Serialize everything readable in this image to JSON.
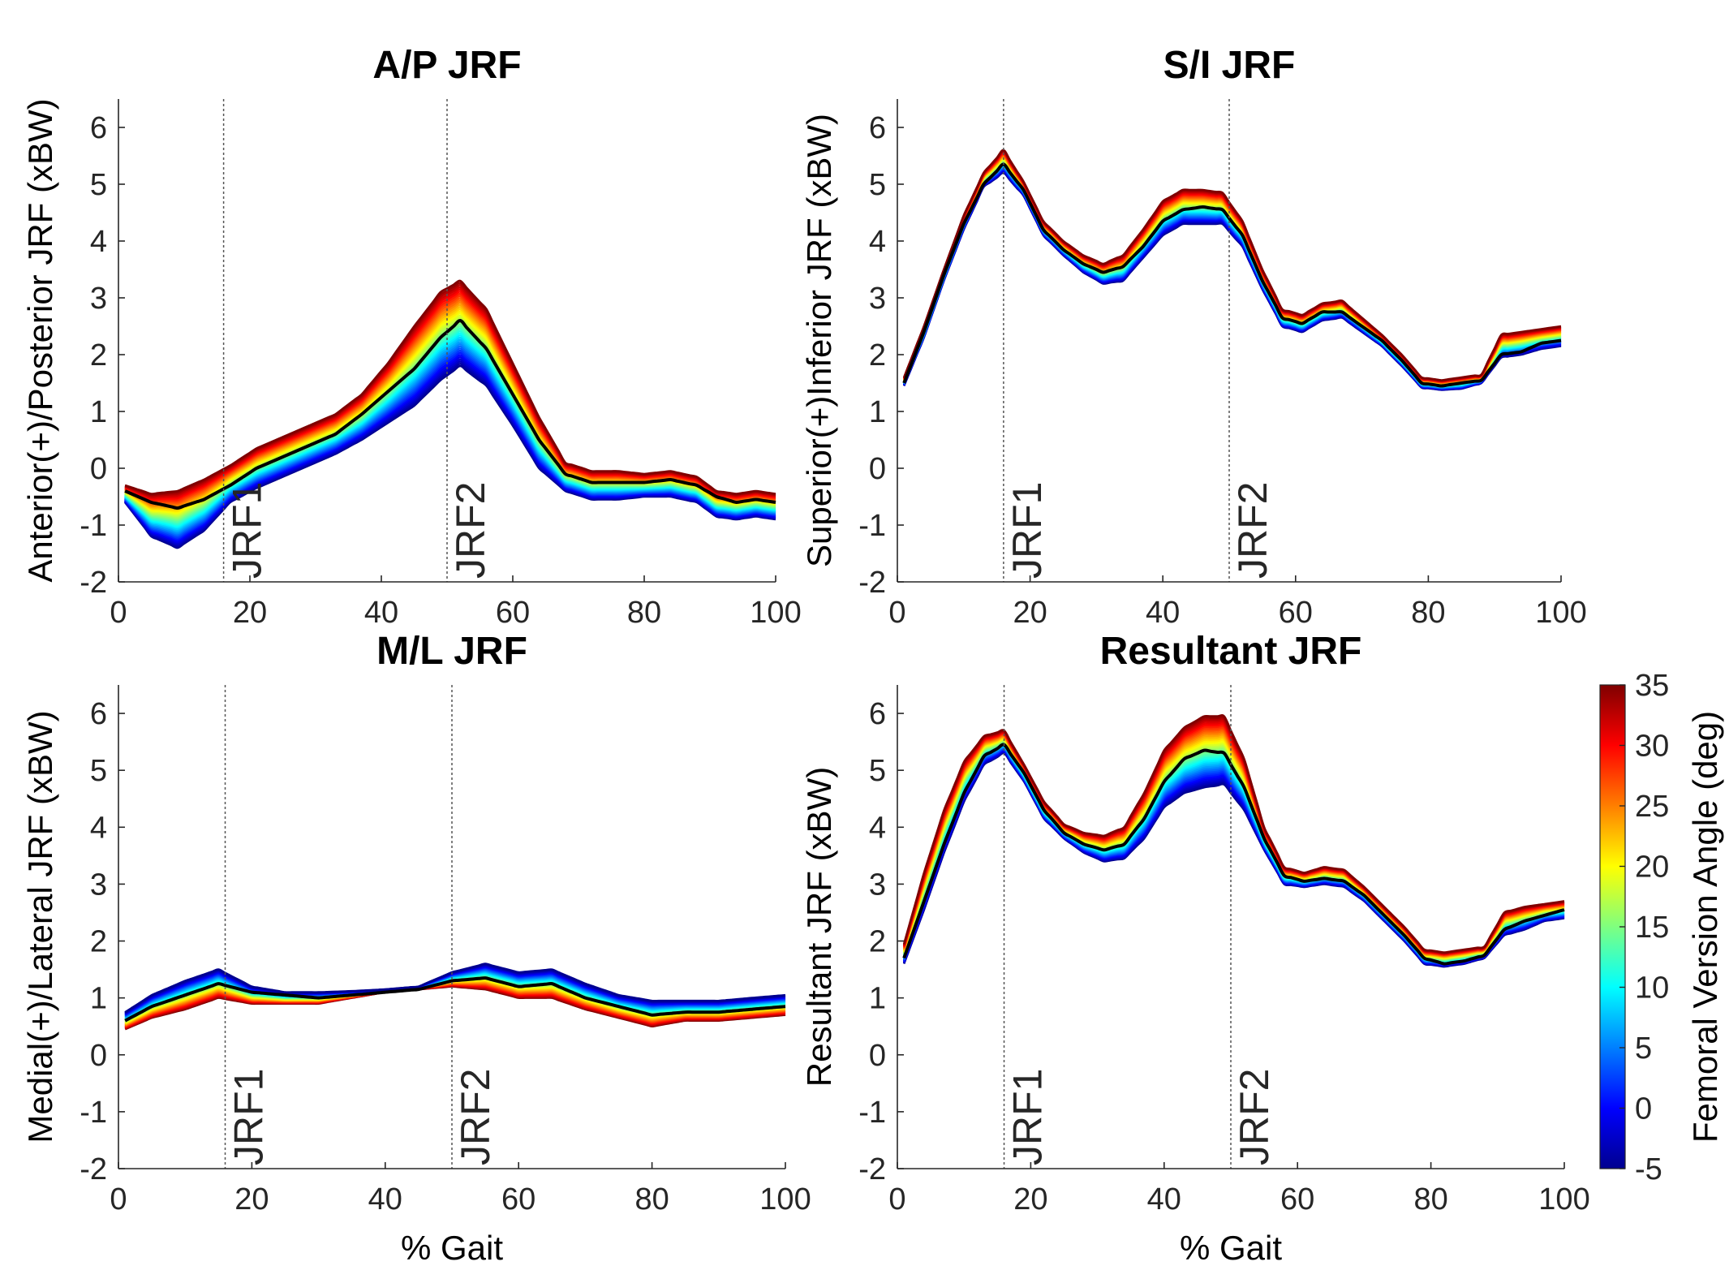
{
  "colormap_stops": [
    "#00008F",
    "#0000FF",
    "#007FFF",
    "#00FFFF",
    "#7FFF7F",
    "#FFFF00",
    "#FF7F00",
    "#FF0000",
    "#7F0000"
  ],
  "mean_color": "#000000",
  "chart_data": [
    {
      "type": "line",
      "title": "A/P JRF",
      "ylabel": "Anterior(+)/Posterior JRF (xBW)",
      "xlabel": "",
      "xlim": [
        0,
        100
      ],
      "ylim": [
        -2,
        6.5
      ],
      "xticks": [
        0,
        20,
        40,
        60,
        80,
        100
      ],
      "yticks": [
        -2,
        -1,
        0,
        1,
        2,
        3,
        4,
        5,
        6
      ],
      "grid": false,
      "events": [
        {
          "x": 16,
          "label": "JRF1"
        },
        {
          "x": 50,
          "label": "JRF2"
        }
      ],
      "mean": {
        "x": [
          1,
          5,
          9,
          13,
          17,
          21,
          25,
          29,
          33,
          37,
          41,
          45,
          49,
          52,
          56,
          60,
          64,
          68,
          72,
          76,
          80,
          84,
          88,
          91,
          94,
          97,
          100
        ],
        "y": [
          -0.4,
          -0.6,
          -0.7,
          -0.55,
          -0.3,
          0.0,
          0.2,
          0.4,
          0.6,
          0.95,
          1.35,
          1.75,
          2.3,
          2.6,
          2.1,
          1.3,
          0.5,
          -0.1,
          -0.25,
          -0.25,
          -0.25,
          -0.2,
          -0.3,
          -0.5,
          -0.6,
          -0.55,
          -0.6
        ]
      },
      "envelope_low": {
        "x": [
          1,
          5,
          9,
          13,
          17,
          21,
          25,
          29,
          33,
          37,
          41,
          45,
          49,
          52,
          56,
          60,
          64,
          68,
          72,
          76,
          80,
          84,
          88,
          91,
          94,
          97,
          100
        ],
        "y": [
          -0.6,
          -1.2,
          -1.4,
          -1.1,
          -0.6,
          -0.35,
          -0.15,
          0.05,
          0.25,
          0.5,
          0.8,
          1.1,
          1.55,
          1.8,
          1.45,
          0.75,
          0.0,
          -0.4,
          -0.55,
          -0.55,
          -0.5,
          -0.5,
          -0.6,
          -0.85,
          -0.9,
          -0.85,
          -0.9
        ]
      },
      "envelope_high": {
        "x": [
          1,
          5,
          9,
          13,
          17,
          21,
          25,
          29,
          33,
          37,
          41,
          45,
          49,
          52,
          56,
          60,
          64,
          68,
          72,
          76,
          80,
          84,
          88,
          91,
          94,
          97,
          100
        ],
        "y": [
          -0.3,
          -0.45,
          -0.4,
          -0.2,
          0.05,
          0.35,
          0.55,
          0.75,
          0.95,
          1.3,
          1.85,
          2.5,
          3.1,
          3.3,
          2.8,
          1.85,
          0.9,
          0.1,
          -0.05,
          -0.05,
          -0.1,
          -0.05,
          -0.15,
          -0.4,
          -0.45,
          -0.4,
          -0.45
        ]
      }
    },
    {
      "type": "line",
      "title": "S/I JRF",
      "ylabel": "Superior(+)Inferior JRF (xBW)",
      "xlabel": "",
      "xlim": [
        0,
        100
      ],
      "ylim": [
        -2,
        6.5
      ],
      "xticks": [
        0,
        20,
        40,
        60,
        80,
        100
      ],
      "yticks": [
        -2,
        -1,
        0,
        1,
        2,
        3,
        4,
        5,
        6
      ],
      "grid": false,
      "events": [
        {
          "x": 16,
          "label": "JRF1"
        },
        {
          "x": 50,
          "label": "JRF2"
        }
      ],
      "mean": {
        "x": [
          1,
          4,
          7,
          10,
          13,
          16,
          19,
          22,
          25,
          28,
          31,
          34,
          37,
          40,
          43,
          46,
          49,
          52,
          55,
          58,
          61,
          64,
          67,
          70,
          73,
          76,
          79,
          82,
          85,
          88,
          91,
          94,
          97,
          100
        ],
        "y": [
          1.5,
          2.4,
          3.4,
          4.3,
          5.0,
          5.35,
          4.9,
          4.2,
          3.85,
          3.6,
          3.45,
          3.55,
          3.9,
          4.35,
          4.55,
          4.6,
          4.55,
          4.1,
          3.3,
          2.65,
          2.55,
          2.75,
          2.75,
          2.5,
          2.25,
          1.9,
          1.5,
          1.45,
          1.5,
          1.55,
          2.0,
          2.05,
          2.2,
          2.25
        ]
      },
      "envelope_low": {
        "x": [
          1,
          4,
          7,
          10,
          13,
          16,
          19,
          22,
          25,
          28,
          31,
          34,
          37,
          40,
          43,
          46,
          49,
          52,
          55,
          58,
          61,
          64,
          67,
          70,
          73,
          76,
          79,
          82,
          85,
          88,
          91,
          94,
          97,
          100
        ],
        "y": [
          1.45,
          2.3,
          3.3,
          4.2,
          4.95,
          5.2,
          4.8,
          4.1,
          3.75,
          3.45,
          3.25,
          3.3,
          3.7,
          4.1,
          4.3,
          4.3,
          4.3,
          3.9,
          3.15,
          2.5,
          2.4,
          2.6,
          2.65,
          2.4,
          2.15,
          1.8,
          1.42,
          1.38,
          1.4,
          1.5,
          1.95,
          2.0,
          2.1,
          2.15
        ]
      },
      "envelope_high": {
        "x": [
          1,
          4,
          7,
          10,
          13,
          16,
          19,
          22,
          25,
          28,
          31,
          34,
          37,
          40,
          43,
          46,
          49,
          52,
          55,
          58,
          61,
          64,
          67,
          70,
          73,
          76,
          79,
          82,
          85,
          88,
          91,
          94,
          97,
          100
        ],
        "y": [
          1.6,
          2.5,
          3.5,
          4.45,
          5.2,
          5.6,
          5.05,
          4.35,
          4.0,
          3.75,
          3.6,
          3.75,
          4.2,
          4.7,
          4.9,
          4.9,
          4.85,
          4.35,
          3.5,
          2.8,
          2.7,
          2.9,
          2.95,
          2.65,
          2.35,
          2.0,
          1.6,
          1.55,
          1.6,
          1.65,
          2.35,
          2.4,
          2.45,
          2.5
        ]
      }
    },
    {
      "type": "line",
      "title": "M/L JRF",
      "ylabel": "Medial(+)/Lateral JRF (xBW)",
      "xlabel": "% Gait",
      "xlim": [
        0,
        100
      ],
      "ylim": [
        -2,
        6.5
      ],
      "xticks": [
        0,
        20,
        40,
        60,
        80,
        100
      ],
      "yticks": [
        -2,
        -1,
        0,
        1,
        2,
        3,
        4,
        5,
        6
      ],
      "grid": false,
      "events": [
        {
          "x": 16,
          "label": "JRF1"
        },
        {
          "x": 50,
          "label": "JRF2"
        }
      ],
      "mean": {
        "x": [
          1,
          5,
          10,
          15,
          20,
          25,
          30,
          35,
          40,
          45,
          50,
          55,
          60,
          65,
          70,
          75,
          80,
          85,
          90,
          95,
          100
        ],
        "y": [
          0.6,
          0.85,
          1.05,
          1.25,
          1.1,
          1.05,
          1.0,
          1.05,
          1.1,
          1.15,
          1.3,
          1.35,
          1.2,
          1.25,
          1.0,
          0.85,
          0.7,
          0.75,
          0.75,
          0.8,
          0.85
        ]
      },
      "envelope_low": {
        "x": [
          1,
          5,
          10,
          15,
          20,
          25,
          30,
          35,
          40,
          45,
          50,
          55,
          60,
          65,
          70,
          75,
          80,
          85,
          90,
          95,
          100
        ],
        "y": [
          0.45,
          0.65,
          0.8,
          1.0,
          0.9,
          0.9,
          0.9,
          1.0,
          1.1,
          1.15,
          1.2,
          1.15,
          1.0,
          1.0,
          0.8,
          0.65,
          0.5,
          0.6,
          0.6,
          0.65,
          0.7
        ]
      },
      "envelope_high": {
        "x": [
          1,
          5,
          10,
          15,
          20,
          25,
          30,
          35,
          40,
          45,
          50,
          55,
          60,
          65,
          70,
          75,
          80,
          85,
          90,
          95,
          100
        ],
        "y": [
          0.75,
          1.05,
          1.3,
          1.5,
          1.2,
          1.1,
          1.1,
          1.12,
          1.15,
          1.2,
          1.45,
          1.6,
          1.45,
          1.5,
          1.25,
          1.05,
          0.95,
          0.95,
          0.95,
          1.0,
          1.05
        ]
      }
    },
    {
      "type": "line",
      "title": "Resultant JRF",
      "ylabel": "Resultant JRF (xBW)",
      "xlabel": "% Gait",
      "xlim": [
        0,
        100
      ],
      "ylim": [
        -2,
        6.5
      ],
      "xticks": [
        0,
        20,
        40,
        60,
        80,
        100
      ],
      "yticks": [
        -2,
        -1,
        0,
        1,
        2,
        3,
        4,
        5,
        6
      ],
      "grid": false,
      "events": [
        {
          "x": 16,
          "label": "JRF1"
        },
        {
          "x": 50,
          "label": "JRF2"
        }
      ],
      "mean": {
        "x": [
          1,
          4,
          7,
          10,
          13,
          16,
          19,
          22,
          25,
          28,
          31,
          34,
          37,
          40,
          43,
          46,
          49,
          52,
          55,
          58,
          61,
          64,
          67,
          70,
          73,
          76,
          79,
          82,
          85,
          88,
          91,
          94,
          97,
          100
        ],
        "y": [
          1.7,
          2.7,
          3.7,
          4.6,
          5.25,
          5.45,
          4.95,
          4.3,
          3.9,
          3.7,
          3.6,
          3.7,
          4.15,
          4.8,
          5.2,
          5.35,
          5.3,
          4.7,
          3.8,
          3.15,
          3.05,
          3.1,
          3.05,
          2.8,
          2.45,
          2.1,
          1.7,
          1.6,
          1.65,
          1.75,
          2.2,
          2.35,
          2.45,
          2.55
        ]
      },
      "envelope_low": {
        "x": [
          1,
          4,
          7,
          10,
          13,
          16,
          19,
          22,
          25,
          28,
          31,
          34,
          37,
          40,
          43,
          46,
          49,
          52,
          55,
          58,
          61,
          64,
          67,
          70,
          73,
          76,
          79,
          82,
          85,
          88,
          91,
          94,
          97,
          100
        ],
        "y": [
          1.6,
          2.55,
          3.55,
          4.45,
          5.1,
          5.3,
          4.8,
          4.15,
          3.8,
          3.55,
          3.4,
          3.45,
          3.8,
          4.35,
          4.6,
          4.7,
          4.75,
          4.3,
          3.6,
          3.0,
          2.95,
          3.0,
          2.95,
          2.7,
          2.35,
          2.0,
          1.6,
          1.55,
          1.6,
          1.7,
          2.1,
          2.2,
          2.35,
          2.4
        ]
      },
      "envelope_high": {
        "x": [
          1,
          4,
          7,
          10,
          13,
          16,
          19,
          22,
          25,
          28,
          31,
          34,
          37,
          40,
          43,
          46,
          49,
          52,
          55,
          58,
          61,
          64,
          67,
          70,
          73,
          76,
          79,
          82,
          85,
          88,
          91,
          94,
          97,
          100
        ],
        "y": [
          1.95,
          3.2,
          4.3,
          5.15,
          5.6,
          5.7,
          5.1,
          4.45,
          4.05,
          3.9,
          3.85,
          4.0,
          4.6,
          5.35,
          5.75,
          5.95,
          5.95,
          5.2,
          4.0,
          3.3,
          3.2,
          3.3,
          3.25,
          2.95,
          2.6,
          2.25,
          1.85,
          1.8,
          1.85,
          1.9,
          2.5,
          2.6,
          2.65,
          2.7
        ]
      }
    }
  ],
  "colorbar": {
    "label": "Femoral Version  Angle (deg)",
    "min": -5,
    "max": 35,
    "ticks": [
      -5,
      0,
      5,
      10,
      15,
      20,
      25,
      30,
      35
    ]
  }
}
